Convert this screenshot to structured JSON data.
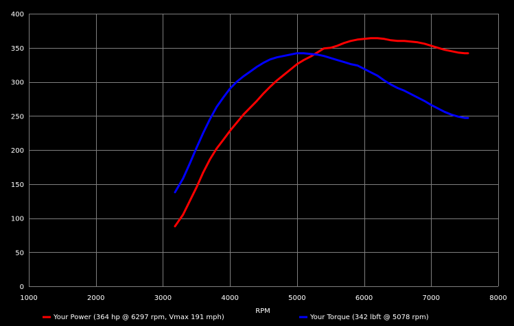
{
  "chart_data": {
    "type": "line",
    "title": "",
    "xlabel": "RPM",
    "ylabel": "",
    "xlim": [
      1000,
      8000
    ],
    "ylim": [
      0,
      400
    ],
    "x_ticks": [
      1000,
      2000,
      3000,
      4000,
      5000,
      6000,
      7000,
      8000
    ],
    "y_ticks": [
      0,
      50,
      100,
      150,
      200,
      250,
      300,
      350,
      400
    ],
    "grid": true,
    "legend_position": "bottom",
    "background": "#000000",
    "grid_color": "#808080",
    "series": [
      {
        "name": "Your Power (364 hp @ 6297 rpm, Vmax 191 mph)",
        "color": "#ff0000",
        "x": [
          3180,
          3300,
          3400,
          3500,
          3600,
          3700,
          3800,
          3900,
          4000,
          4100,
          4200,
          4300,
          4400,
          4500,
          4600,
          4700,
          4800,
          4900,
          5000,
          5100,
          5200,
          5300,
          5400,
          5500,
          5600,
          5700,
          5800,
          5900,
          6000,
          6100,
          6200,
          6300,
          6400,
          6500,
          6600,
          6700,
          6800,
          6900,
          7000,
          7100,
          7200,
          7300,
          7400,
          7500,
          7550
        ],
        "y": [
          88,
          105,
          125,
          145,
          167,
          186,
          202,
          215,
          228,
          240,
          252,
          262,
          272,
          283,
          293,
          302,
          310,
          318,
          326,
          332,
          337,
          343,
          349,
          350,
          353,
          357,
          360,
          362,
          363,
          364,
          364,
          363,
          361,
          360,
          360,
          359,
          358,
          356,
          353,
          350,
          347,
          345,
          343,
          342,
          342
        ]
      },
      {
        "name": "Your Torque (342 lbft @ 5078 rpm)",
        "color": "#0000ff",
        "x": [
          3180,
          3300,
          3400,
          3500,
          3600,
          3700,
          3800,
          3900,
          4000,
          4100,
          4200,
          4300,
          4400,
          4500,
          4600,
          4700,
          4800,
          4900,
          5000,
          5100,
          5200,
          5300,
          5400,
          5500,
          5600,
          5700,
          5800,
          5900,
          6000,
          6100,
          6200,
          6300,
          6400,
          6500,
          6600,
          6700,
          6800,
          6900,
          7000,
          7100,
          7200,
          7300,
          7400,
          7500,
          7550
        ],
        "y": [
          138,
          158,
          180,
          203,
          225,
          245,
          263,
          277,
          290,
          300,
          308,
          315,
          322,
          328,
          333,
          336,
          338,
          340,
          342,
          342,
          341,
          340,
          338,
          335,
          332,
          329,
          326,
          324,
          319,
          314,
          309,
          302,
          296,
          291,
          287,
          282,
          277,
          272,
          266,
          261,
          256,
          252,
          249,
          247,
          247
        ]
      }
    ]
  }
}
